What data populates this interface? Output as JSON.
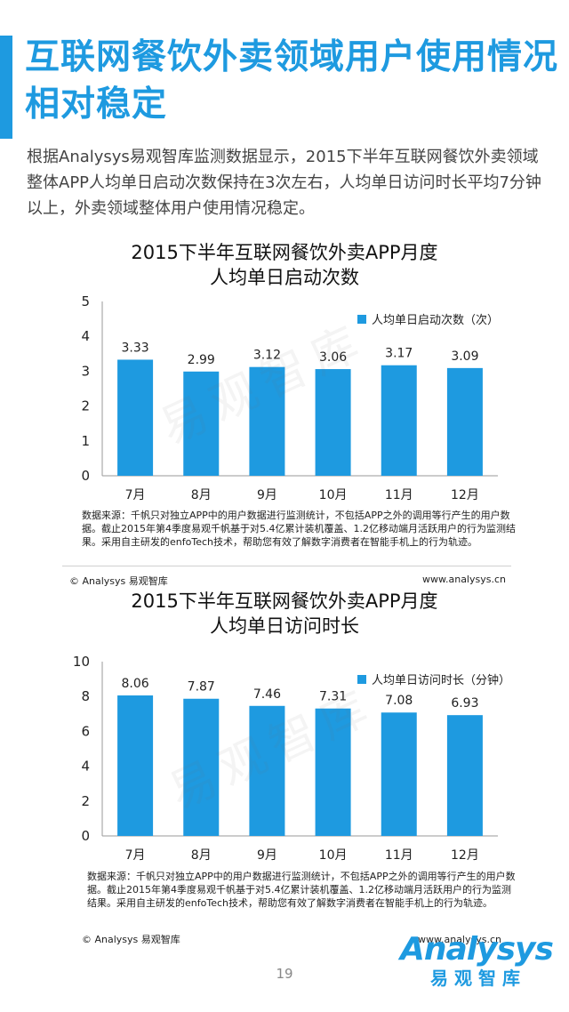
{
  "header": {
    "title": "互联网餐饮外卖领域用户使用情况相对稳定",
    "intro": "根据Analysys易观智库监测数据显示，2015下半年互联网餐饮外卖领域整体APP人均单日启动次数保持在3次左右，人均单日访问时长平均7分钟以上，外卖领域整体用户使用情况稳定。"
  },
  "watermark": "易观智库",
  "chart_data": [
    {
      "type": "bar",
      "title": "2015下半年互联网餐饮外卖APP月度人均单日启动次数",
      "title_lines": [
        "2015下半年互联网餐饮外卖APP月度",
        "人均单日启动次数"
      ],
      "categories": [
        "7月",
        "8月",
        "9月",
        "10月",
        "11月",
        "12月"
      ],
      "series": [
        {
          "name": "人均单日启动次数（次）",
          "values": [
            3.33,
            2.99,
            3.12,
            3.06,
            3.17,
            3.09
          ],
          "labels": [
            "3.33",
            "2.99",
            "3.12",
            "3.06",
            "3.17",
            "3.09"
          ]
        }
      ],
      "ylim": [
        0,
        5
      ],
      "yticks": [
        "0",
        "1",
        "2",
        "3",
        "4",
        "5"
      ],
      "xlabel": "",
      "ylabel": "",
      "grid": false,
      "legend_position": "top-right",
      "color": "#1e9ae0",
      "source": "数据来源：千帆只对独立APP中的用户数据进行监测统计，不包括APP之外的调用等行产生的用户数据。截止2015年第4季度易观千帆基于对5.4亿累计装机覆盖、1.2亿移动端月活跃用户的行为监测结果。采用自主研发的enfoTech技术，帮助您有效了解数字消费者在智能手机上的行为轨迹。",
      "copyright": "© Analysys 易观智库",
      "website": "www.analysys.cn"
    },
    {
      "type": "bar",
      "title": "2015下半年互联网餐饮外卖APP月度人均单日访问时长",
      "title_lines": [
        "2015下半年互联网餐饮外卖APP月度",
        "人均单日访问时长"
      ],
      "categories": [
        "7月",
        "8月",
        "9月",
        "10月",
        "11月",
        "12月"
      ],
      "series": [
        {
          "name": "人均单日访问时长（分钟）",
          "values": [
            8.06,
            7.87,
            7.46,
            7.31,
            7.08,
            6.93
          ],
          "labels": [
            "8.06",
            "7.87",
            "7.46",
            "7.31",
            "7.08",
            "6.93"
          ]
        }
      ],
      "ylim": [
        0,
        10
      ],
      "yticks": [
        "0",
        "2",
        "4",
        "6",
        "8",
        "10"
      ],
      "xlabel": "",
      "ylabel": "",
      "grid": false,
      "legend_position": "top-right",
      "color": "#1e9ae0",
      "source": "数据来源：千帆只对独立APP中的用户数据进行监测统计，不包括APP之外的调用等行产生的用户数据。截止2015年第4季度易观千帆基于对5.4亿累计装机覆盖、1.2亿移动端月活跃用户的行为监测结果。采用自主研发的enfoTech技术，帮助您有效了解数字消费者在智能手机上的行为轨迹。",
      "copyright": "© Analysys 易观智库",
      "website": "www.analysys.cn"
    }
  ],
  "footer": {
    "page_number": "19",
    "logo_word": "Analysys",
    "logo_cn": "易观智库"
  }
}
